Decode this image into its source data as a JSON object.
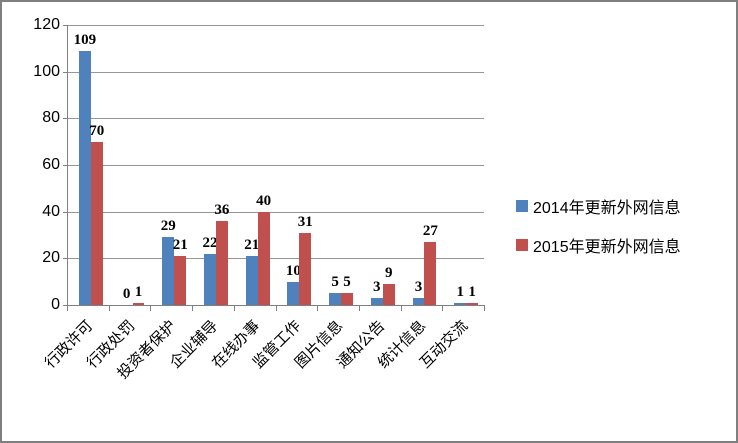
{
  "chart_data": {
    "type": "bar",
    "title": "",
    "xlabel": "",
    "ylabel": "",
    "categories": [
      "行政许可",
      "行政处罚",
      "投资者保护",
      "企业辅导",
      "在线办事",
      "监管工作",
      "图片信息",
      "通知公告",
      "统计信息",
      "互动交流"
    ],
    "series": [
      {
        "name": "2014年更新外网信息",
        "color": "#4F81BD",
        "values": [
          109,
          0,
          29,
          22,
          21,
          10,
          5,
          3,
          3,
          1
        ]
      },
      {
        "name": "2015年更新外网信息",
        "color": "#C0504D",
        "values": [
          70,
          1,
          21,
          36,
          40,
          31,
          5,
          9,
          27,
          1
        ]
      }
    ],
    "ylim": [
      0,
      120
    ],
    "yticks": [
      0,
      20,
      40,
      60,
      80,
      100,
      120
    ],
    "grid": true,
    "data_labels": true,
    "legend_position": "right",
    "colors": {
      "axis": "#808080",
      "gridline": "#969696",
      "frame_border": "#7F7F7F",
      "background": "#FFFFFF",
      "text": "#000000"
    }
  }
}
